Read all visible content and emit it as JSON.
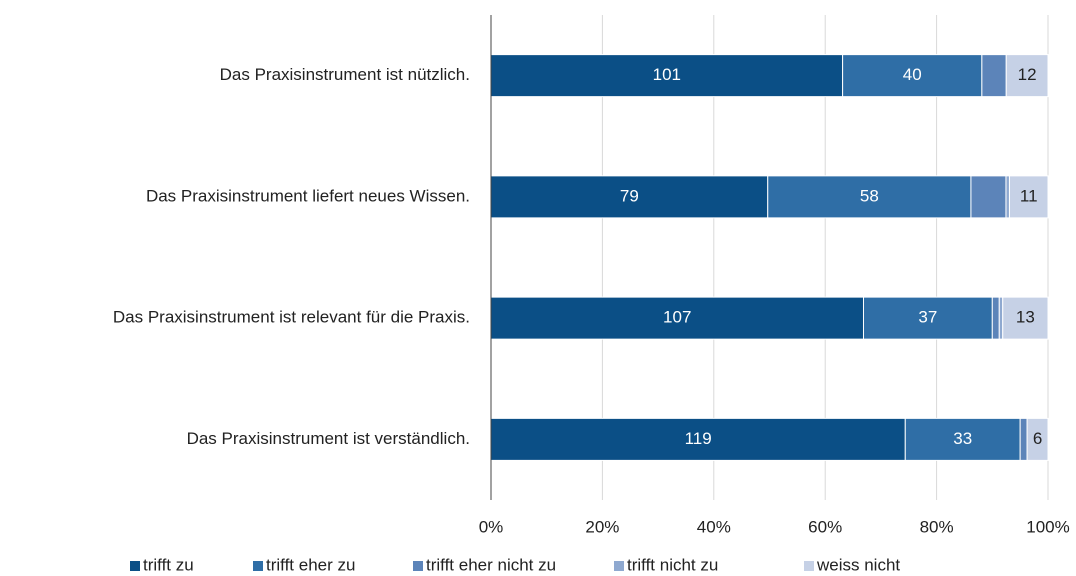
{
  "chart_data": {
    "type": "bar",
    "orientation": "horizontal",
    "stack": "percent",
    "categories": [
      "Das Praxisinstrument ist nützlich.",
      "Das Praxisinstrument liefert neues Wissen.",
      "Das Praxisinstrument ist relevant für die Praxis.",
      "Das Praxisinstrument ist verständlich."
    ],
    "series": [
      {
        "name": "trifft zu",
        "color": "#0b4f86",
        "show_labels": true,
        "values": [
          101,
          79,
          107,
          119
        ]
      },
      {
        "name": "trifft eher zu",
        "color": "#2f6ea6",
        "show_labels": true,
        "values": [
          40,
          58,
          37,
          33
        ]
      },
      {
        "name": "trifft eher nicht zu",
        "color": "#5c84b9",
        "show_labels": false,
        "values": [
          7,
          10,
          2,
          2
        ]
      },
      {
        "name": "trifft nicht zu",
        "color": "#8fa9d0",
        "show_labels": false,
        "values": [
          0,
          1,
          1,
          0
        ]
      },
      {
        "name": "weiss nicht",
        "color": "#c6d1e6",
        "show_labels": true,
        "values": [
          12,
          11,
          13,
          6
        ]
      }
    ],
    "xlim": [
      0,
      100
    ],
    "xticks": [
      {
        "value": 0,
        "label": "0%"
      },
      {
        "value": 20,
        "label": "20%"
      },
      {
        "value": 40,
        "label": "40%"
      },
      {
        "value": 60,
        "label": "60%"
      },
      {
        "value": 80,
        "label": "80%"
      },
      {
        "value": 100,
        "label": "100%"
      }
    ],
    "grid": true,
    "legend": "bottom"
  }
}
